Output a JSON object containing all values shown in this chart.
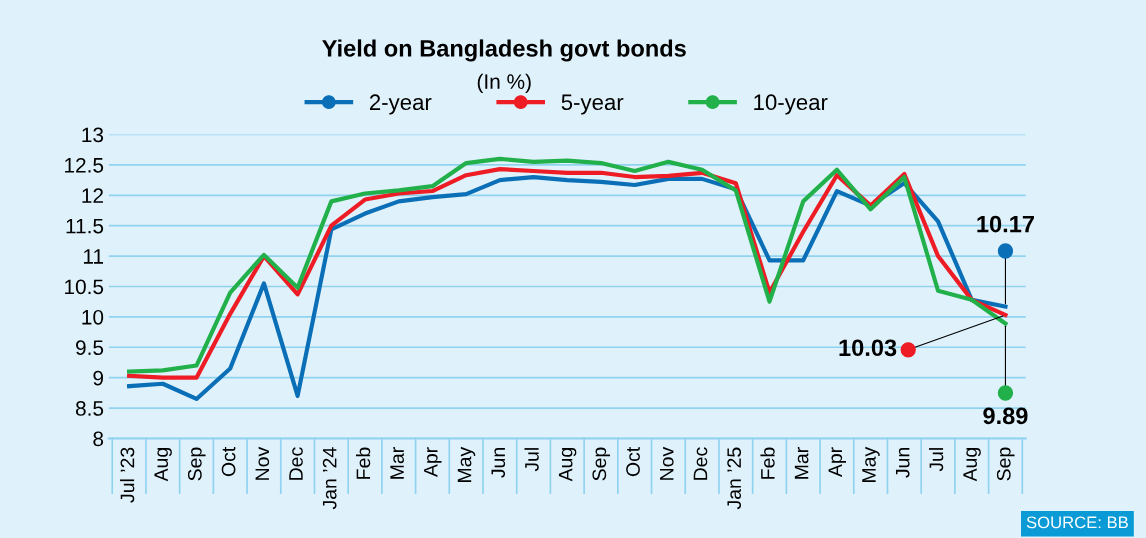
{
  "chart_data": {
    "type": "line",
    "title": "Yield on Bangladesh govt bonds",
    "subtitle": "(In %)",
    "categories": [
      "Jul ’23",
      "Aug",
      "Sep",
      "Oct",
      "Nov",
      "Dec",
      "Jan ’24",
      "Feb",
      "Mar",
      "Apr",
      "May",
      "Jun",
      "Jul",
      "Aug",
      "Sep",
      "Oct",
      "Nov",
      "Dec",
      "Jan ’25",
      "Feb",
      "Mar",
      "Apr",
      "May",
      "Jun",
      "Jul",
      "Aug",
      "Sep"
    ],
    "series": [
      {
        "name": "2-year",
        "color": "#0a6fb7",
        "values": [
          8.86,
          8.9,
          8.65,
          9.15,
          10.55,
          8.7,
          11.44,
          11.7,
          11.9,
          11.97,
          12.02,
          12.25,
          12.3,
          12.25,
          12.22,
          12.17,
          12.27,
          12.27,
          12.1,
          10.93,
          10.93,
          12.07,
          11.83,
          12.2,
          11.57,
          10.28,
          10.17
        ],
        "value_labels": [
          null,
          null,
          null,
          null,
          null,
          null,
          null,
          null,
          null,
          null,
          null,
          null,
          null,
          null,
          null,
          null,
          null,
          null,
          null,
          null,
          null,
          null,
          null,
          null,
          null,
          null,
          "10.17"
        ]
      },
      {
        "name": "5-year",
        "color": "#ee1c25",
        "values": [
          9.03,
          9.0,
          9.0,
          10.05,
          11.0,
          10.37,
          11.5,
          11.93,
          12.03,
          12.07,
          12.33,
          12.43,
          12.4,
          12.37,
          12.37,
          12.3,
          12.32,
          12.37,
          12.2,
          10.4,
          11.4,
          12.33,
          11.83,
          12.35,
          11.0,
          10.28,
          10.03
        ],
        "value_labels": [
          null,
          null,
          null,
          null,
          null,
          null,
          null,
          null,
          null,
          null,
          null,
          null,
          null,
          null,
          null,
          null,
          null,
          null,
          null,
          null,
          null,
          null,
          null,
          null,
          null,
          null,
          "10.03"
        ]
      },
      {
        "name": "10-year",
        "color": "#22b04b",
        "values": [
          9.1,
          9.12,
          9.2,
          10.4,
          11.02,
          10.48,
          11.9,
          12.03,
          12.08,
          12.15,
          12.53,
          12.6,
          12.55,
          12.57,
          12.53,
          12.4,
          12.55,
          12.42,
          12.08,
          10.25,
          11.9,
          12.42,
          11.77,
          12.3,
          10.43,
          10.28,
          9.89
        ],
        "value_labels": [
          null,
          null,
          null,
          null,
          null,
          null,
          null,
          null,
          null,
          null,
          null,
          null,
          null,
          null,
          null,
          null,
          null,
          null,
          null,
          null,
          null,
          null,
          null,
          null,
          null,
          null,
          "9.89"
        ]
      }
    ],
    "ylim": [
      8,
      13
    ],
    "yticks": [
      8,
      {
        "value": 8.5,
        "label": "8.5"
      },
      9,
      {
        "value": 9.5,
        "label": "9.5"
      },
      10,
      {
        "value": 10.5,
        "label": "10.5"
      },
      11,
      {
        "value": 11.5,
        "label": "11.5"
      },
      12,
      {
        "value": 12.5,
        "label": "12.5"
      },
      13
    ],
    "grid": "y",
    "legend": "top",
    "marker": "none",
    "line_style": "solid",
    "annotations": [
      "SOURCE: BB"
    ]
  }
}
